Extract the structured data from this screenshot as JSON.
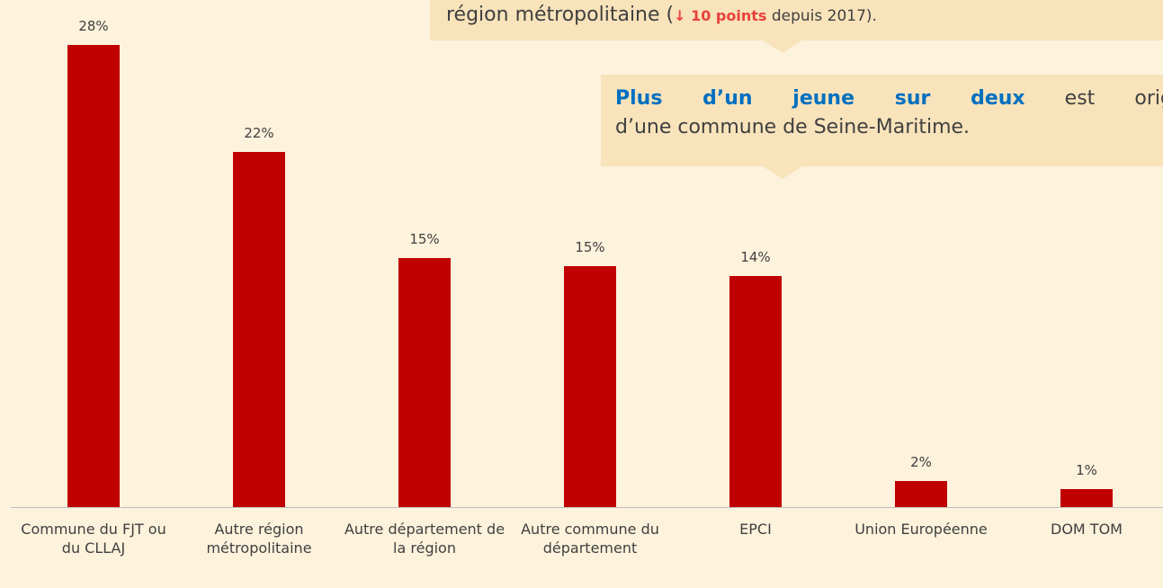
{
  "chart_data": {
    "type": "bar",
    "categories": [
      "Commune du FJT ou du CLLAJ",
      "Autre région métropolitaine",
      "Autre département de la région",
      "Autre commune du département",
      "EPCI",
      "Union Européenne",
      "DOM TOM"
    ],
    "values": [
      28,
      21.5,
      15.1,
      14.6,
      14.0,
      1.6,
      1.1
    ],
    "value_labels": [
      "28%",
      "22%",
      "15%",
      "15%",
      "14%",
      "2%",
      "1%"
    ],
    "color": "#c00000"
  },
  "callouts": [
    {
      "parts": [
        "région métropolitaine (",
        "↓ 10 points",
        " depuis 2017)."
      ]
    },
    {
      "parts": [
        "Plus d’un jeune sur deux",
        " est origin",
        "d’une commune de Seine-Maritime."
      ]
    }
  ]
}
